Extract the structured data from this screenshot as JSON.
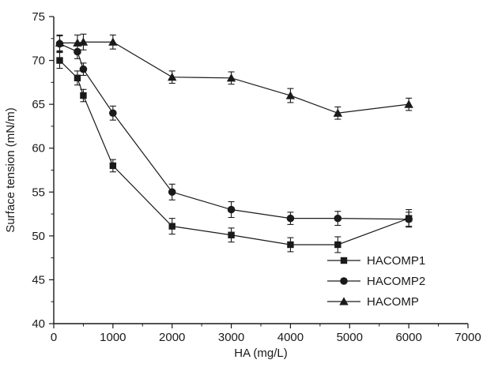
{
  "chart_data": {
    "type": "line",
    "title": "",
    "xlabel": "HA (mg/L)",
    "ylabel": "Surface tension (mN/m)",
    "xlim": [
      0,
      7000
    ],
    "ylim": [
      40,
      75
    ],
    "xticks": [
      0,
      1000,
      2000,
      3000,
      4000,
      5000,
      6000,
      7000
    ],
    "yticks": [
      40,
      45,
      50,
      55,
      60,
      65,
      70,
      75
    ],
    "grid": false,
    "legend_position": "bottom-right",
    "error_bars": true,
    "series": [
      {
        "name": "HACOMP1",
        "marker": "square",
        "x": [
          100,
          400,
          500,
          1000,
          2000,
          3000,
          4000,
          4800,
          6000
        ],
        "y": [
          70.0,
          68.0,
          66.0,
          58.0,
          51.1,
          50.1,
          49.0,
          49.0,
          52.0
        ],
        "err": [
          0.9,
          0.8,
          0.7,
          0.7,
          0.9,
          0.8,
          0.8,
          0.9,
          1.0
        ]
      },
      {
        "name": "HACOMP2",
        "marker": "circle",
        "x": [
          100,
          400,
          500,
          1000,
          2000,
          3000,
          4000,
          4800,
          6000
        ],
        "y": [
          71.9,
          71.0,
          69.0,
          64.0,
          55.0,
          53.0,
          52.0,
          52.0,
          51.9
        ],
        "err": [
          0.9,
          0.8,
          0.7,
          0.8,
          0.9,
          0.9,
          0.7,
          0.8,
          0.8
        ]
      },
      {
        "name": "HACOMP",
        "marker": "triangle",
        "x": [
          100,
          400,
          500,
          1000,
          2000,
          3000,
          4000,
          4800,
          6000
        ],
        "y": [
          72.0,
          72.0,
          72.1,
          72.1,
          68.1,
          68.0,
          66.0,
          64.0,
          65.0
        ],
        "err": [
          0.9,
          0.9,
          0.9,
          0.8,
          0.7,
          0.7,
          0.8,
          0.7,
          0.7
        ]
      }
    ]
  }
}
